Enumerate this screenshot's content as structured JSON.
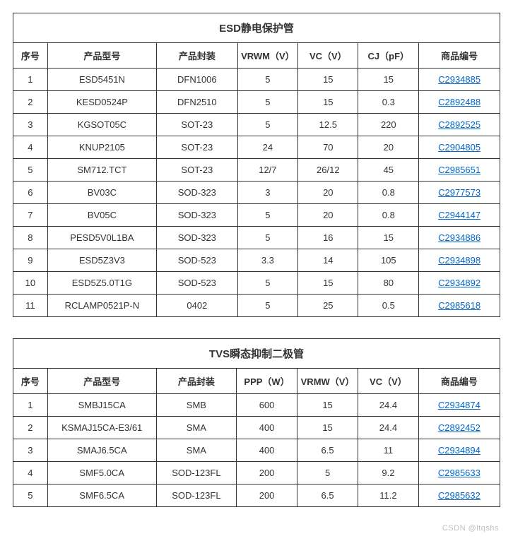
{
  "table1": {
    "title": "ESD静电保护管",
    "headers": [
      "序号",
      "产品型号",
      "产品封装",
      "VRWM（V）",
      "VC（V）",
      "CJ（pF）",
      "商品编号"
    ],
    "rows": [
      {
        "idx": "1",
        "model": "ESD5451N",
        "pkg": "DFN1006",
        "a": "5",
        "b": "15",
        "c": "15",
        "code": "C2934885"
      },
      {
        "idx": "2",
        "model": "KESD0524P",
        "pkg": "DFN2510",
        "a": "5",
        "b": "15",
        "c": "0.3",
        "code": "C2892488"
      },
      {
        "idx": "3",
        "model": "KGSOT05C",
        "pkg": "SOT-23",
        "a": "5",
        "b": "12.5",
        "c": "220",
        "code": "C2892525"
      },
      {
        "idx": "4",
        "model": "KNUP2105",
        "pkg": "SOT-23",
        "a": "24",
        "b": "70",
        "c": "20",
        "code": "C2904805"
      },
      {
        "idx": "5",
        "model": "SM712.TCT",
        "pkg": "SOT-23",
        "a": "12/7",
        "b": "26/12",
        "c": "45",
        "code": "C2985651"
      },
      {
        "idx": "6",
        "model": "BV03C",
        "pkg": "SOD-323",
        "a": "3",
        "b": "20",
        "c": "0.8",
        "code": "C2977573"
      },
      {
        "idx": "7",
        "model": "BV05C",
        "pkg": "SOD-323",
        "a": "5",
        "b": "20",
        "c": "0.8",
        "code": "C2944147"
      },
      {
        "idx": "8",
        "model": "PESD5V0L1BA",
        "pkg": "SOD-323",
        "a": "5",
        "b": "16",
        "c": "15",
        "code": "C2934886"
      },
      {
        "idx": "9",
        "model": "ESD5Z3V3",
        "pkg": "SOD-523",
        "a": "3.3",
        "b": "14",
        "c": "105",
        "code": "C2934898"
      },
      {
        "idx": "10",
        "model": "ESD5Z5.0T1G",
        "pkg": "SOD-523",
        "a": "5",
        "b": "15",
        "c": "80",
        "code": "C2934892"
      },
      {
        "idx": "11",
        "model": "RCLAMP0521P-N",
        "pkg": "0402",
        "a": "5",
        "b": "25",
        "c": "0.5",
        "code": "C2985618"
      }
    ]
  },
  "table2": {
    "title": "TVS瞬态抑制二极管",
    "headers": [
      "序号",
      "产品型号",
      "产品封装",
      "PPP（W）",
      "VRMW（V）",
      "VC（V）",
      "商品编号"
    ],
    "rows": [
      {
        "idx": "1",
        "model": "SMBJ15CA",
        "pkg": "SMB",
        "a": "600",
        "b": "15",
        "c": "24.4",
        "code": "C2934874"
      },
      {
        "idx": "2",
        "model": "KSMAJ15CA-E3/61",
        "pkg": "SMA",
        "a": "400",
        "b": "15",
        "c": "24.4",
        "code": "C2892452"
      },
      {
        "idx": "3",
        "model": "SMAJ6.5CA",
        "pkg": "SMA",
        "a": "400",
        "b": "6.5",
        "c": "11",
        "code": "C2934894"
      },
      {
        "idx": "4",
        "model": "SMF5.0CA",
        "pkg": "SOD-123FL",
        "a": "200",
        "b": "5",
        "c": "9.2",
        "code": "C2985633"
      },
      {
        "idx": "5",
        "model": "SMF6.5CA",
        "pkg": "SOD-123FL",
        "a": "200",
        "b": "6.5",
        "c": "11.2",
        "code": "C2985632"
      }
    ]
  },
  "watermark": "CSDN @ltqshs"
}
